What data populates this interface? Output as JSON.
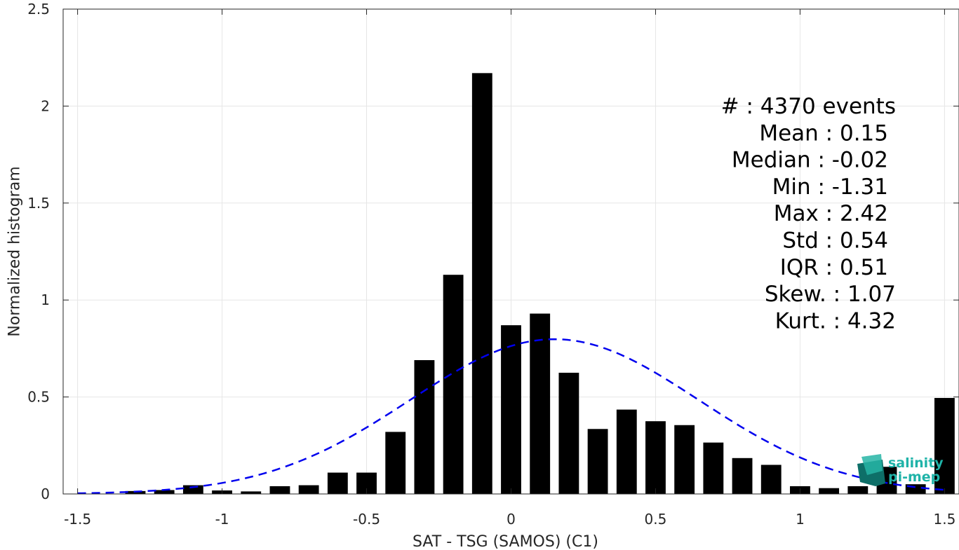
{
  "chart_data": {
    "type": "bar",
    "xlabel": "SAT - TSG (SAMOS) (C1)",
    "ylabel": "Normalized histogram",
    "xlim": [
      -1.55,
      1.55
    ],
    "ylim": [
      0,
      2.5
    ],
    "xticks": [
      -1.5,
      -1,
      -0.5,
      0,
      0.5,
      1,
      1.5
    ],
    "xtick_labels": [
      "-1.5",
      "-1",
      "-0.5",
      "0",
      "0.5",
      "1",
      "1.5"
    ],
    "yticks": [
      0,
      0.5,
      1,
      1.5,
      2,
      2.5
    ],
    "ytick_labels": [
      "0",
      "0.5",
      "1",
      "1.5",
      "2",
      "2.5"
    ],
    "grid": true,
    "bin_width": 0.1,
    "bins": [
      {
        "x": -1.3,
        "y": 0.015
      },
      {
        "x": -1.2,
        "y": 0.02
      },
      {
        "x": -1.1,
        "y": 0.045
      },
      {
        "x": -1.0,
        "y": 0.018
      },
      {
        "x": -0.9,
        "y": 0.013
      },
      {
        "x": -0.8,
        "y": 0.04
      },
      {
        "x": -0.7,
        "y": 0.045
      },
      {
        "x": -0.6,
        "y": 0.11
      },
      {
        "x": -0.5,
        "y": 0.11
      },
      {
        "x": -0.4,
        "y": 0.32
      },
      {
        "x": -0.3,
        "y": 0.69
      },
      {
        "x": -0.2,
        "y": 1.13
      },
      {
        "x": -0.1,
        "y": 2.17
      },
      {
        "x": 0.0,
        "y": 0.87
      },
      {
        "x": 0.1,
        "y": 0.93
      },
      {
        "x": 0.2,
        "y": 0.625
      },
      {
        "x": 0.3,
        "y": 0.335
      },
      {
        "x": 0.4,
        "y": 0.435
      },
      {
        "x": 0.5,
        "y": 0.375
      },
      {
        "x": 0.6,
        "y": 0.355
      },
      {
        "x": 0.7,
        "y": 0.265
      },
      {
        "x": 0.8,
        "y": 0.185
      },
      {
        "x": 0.9,
        "y": 0.15
      },
      {
        "x": 1.0,
        "y": 0.04
      },
      {
        "x": 1.1,
        "y": 0.03
      },
      {
        "x": 1.2,
        "y": 0.04
      },
      {
        "x": 1.3,
        "y": 0.14
      },
      {
        "x": 1.4,
        "y": 0.05
      },
      {
        "x": 1.5,
        "y": 0.495
      }
    ],
    "fit_curve": {
      "style": "dashed",
      "color": "#0000ee",
      "mean": 0.15,
      "std": 0.5,
      "x_range": [
        -1.5,
        1.5
      ]
    },
    "bar_color": "#000000",
    "stats": [
      "#  : 4370 events",
      "Mean : 0.15",
      "Median : -0.02",
      "Min : -1.31",
      "Max : 2.42",
      "Std : 0.54",
      "IQR : 0.51",
      "Skew. : 1.07",
      "Kurt. : 4.32"
    ]
  },
  "logo": {
    "line1": "salinity",
    "line2": "pi-mep",
    "color": "#1fb3a8"
  }
}
